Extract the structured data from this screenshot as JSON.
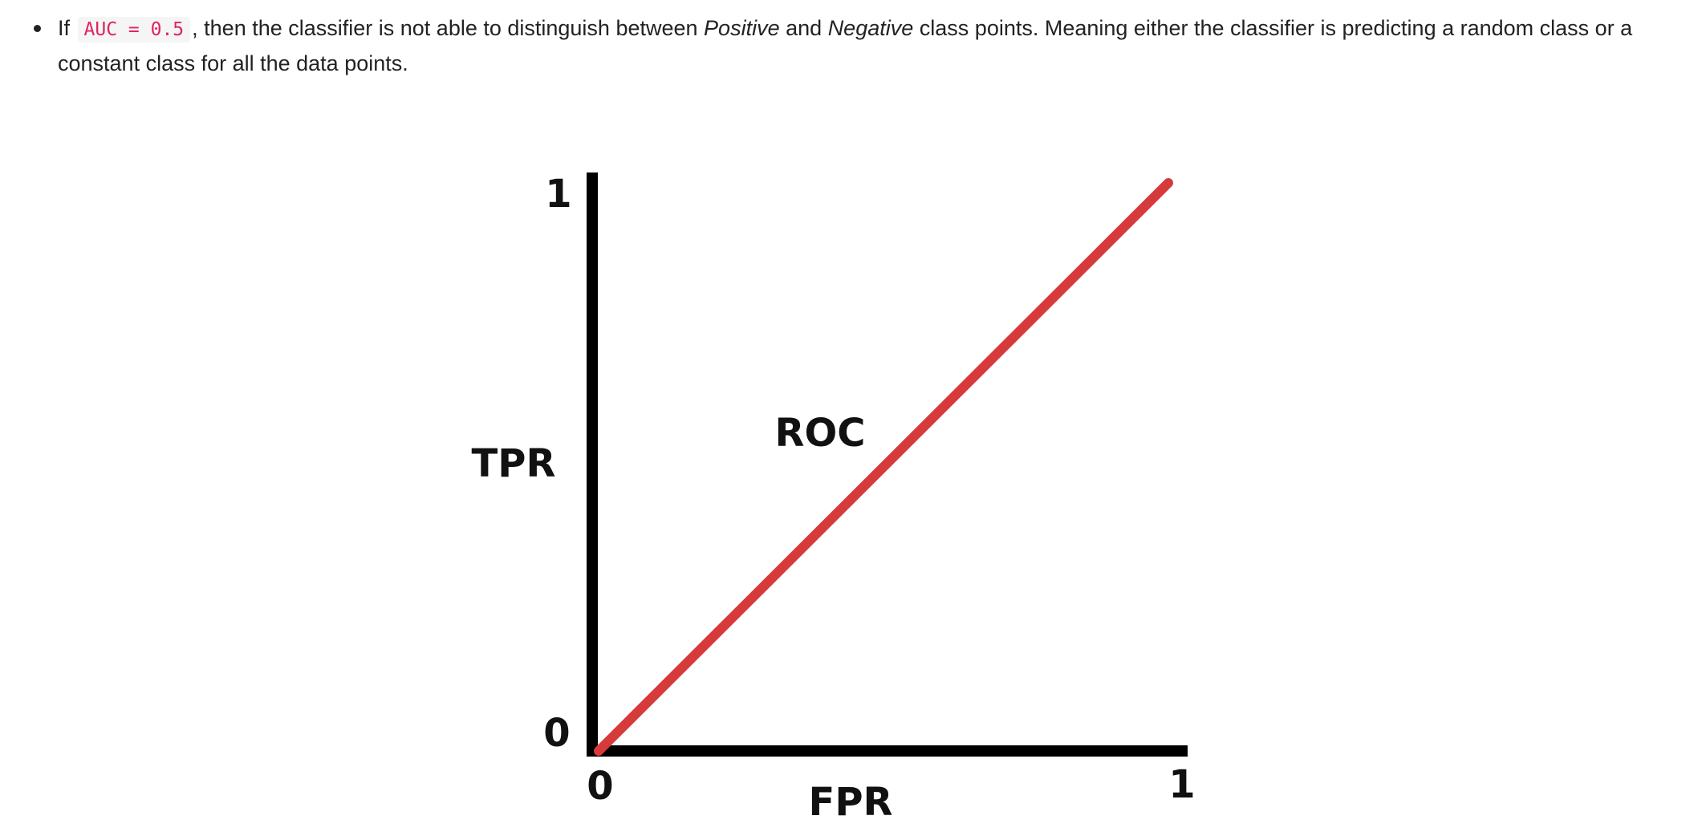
{
  "paragraph": {
    "prefix": "If",
    "code": "AUC = 0.5",
    "text_before_positive": ", then the classifier is not able to distinguish between",
    "positive": "Positive",
    "and": "and",
    "negative": "Negative",
    "text_after_negative": "class points. Meaning either the classifier is predicting a random class or a constant class for all the data points."
  },
  "chart_data": {
    "type": "line",
    "xlabel": "FPR",
    "ylabel": "TPR",
    "xlim": [
      0,
      1
    ],
    "ylim": [
      0,
      1
    ],
    "x_ticks": [
      "0",
      "1"
    ],
    "y_ticks": [
      "0",
      "1"
    ],
    "grid": false,
    "series": [
      {
        "name": "ROC",
        "color": "#d63a3a",
        "x": [
          0,
          1
        ],
        "y": [
          0,
          1
        ]
      }
    ],
    "axis_color": "#000000"
  }
}
